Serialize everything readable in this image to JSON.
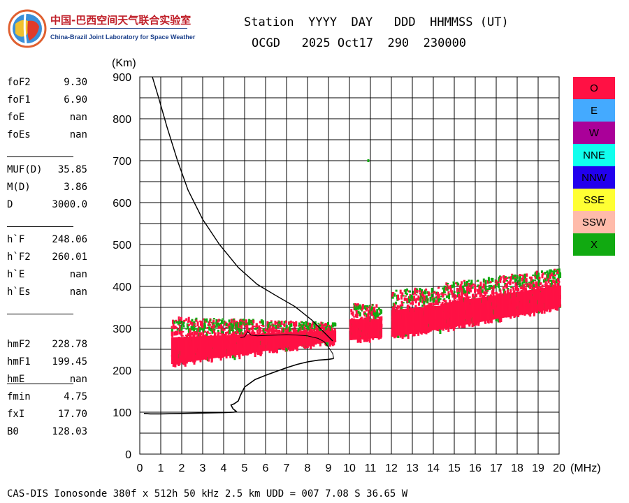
{
  "logo": {
    "name_cn": "中国-巴西空间天气联合实验室",
    "name_en": "China-Brazil Joint Laboratory for Space Weather"
  },
  "header": {
    "line1": "Station  YYYY  DAY   DDD  HHMMSS (UT)",
    "line2": "OCGD   2025 Oct17  290  230000"
  },
  "parameters": [
    [
      {
        "label": "foF2",
        "value": "9.30"
      },
      {
        "label": "foF1",
        "value": "6.90"
      },
      {
        "label": "foE",
        "value": "nan"
      },
      {
        "label": "foEs",
        "value": "nan"
      }
    ],
    [
      {
        "label": "MUF(D)",
        "value": "35.85"
      },
      {
        "label": "M(D)",
        "value": "3.86"
      },
      {
        "label": "D",
        "value": "3000.0"
      }
    ],
    [
      {
        "label": "h`F",
        "value": "248.06"
      },
      {
        "label": "h`F2",
        "value": "260.01"
      },
      {
        "label": "h`E",
        "value": "nan"
      },
      {
        "label": "h`Es",
        "value": "nan"
      }
    ],
    [
      {
        "label": "hmF2",
        "value": "228.78"
      },
      {
        "label": "hmF1",
        "value": "199.45"
      },
      {
        "label": "hmE",
        "value": "nan"
      }
    ],
    [
      {
        "label": "fmin",
        "value": "4.75"
      },
      {
        "label": "fxI",
        "value": "17.70"
      },
      {
        "label": "B0",
        "value": "128.03"
      }
    ]
  ],
  "legend": [
    {
      "label": "O",
      "color": "#ff1144"
    },
    {
      "label": "E",
      "color": "#44aaff"
    },
    {
      "label": "W",
      "color": "#aa0099"
    },
    {
      "label": "NNE",
      "color": "#11ffee"
    },
    {
      "label": "NNW",
      "color": "#2200ee"
    },
    {
      "label": "SSE",
      "color": "#ffff33"
    },
    {
      "label": "SSW",
      "color": "#ffbbaa"
    },
    {
      "label": "X",
      "color": "#11aa11"
    }
  ],
  "footer": "CAS-DIS Ionosonde 380f x 512h 50 kHz 2.5 km UDD = 007 7.08 S 36.65 W",
  "chart_data": {
    "type": "scatter",
    "xlabel": "(MHz)",
    "ylabel": "(Km)",
    "xlim": [
      0,
      20
    ],
    "ylim": [
      0,
      900
    ],
    "xticks": [
      0,
      1,
      2,
      3,
      4,
      5,
      6,
      7,
      8,
      9,
      10,
      11,
      12,
      13,
      14,
      15,
      16,
      17,
      18,
      19,
      20
    ],
    "yticks": [
      0,
      100,
      200,
      300,
      400,
      500,
      600,
      700,
      800,
      900
    ],
    "grid": true,
    "legend_position": "right",
    "echo_bands": [
      {
        "x0": 1.5,
        "x1": 9.3,
        "base0": 215,
        "base1": 270,
        "thick0": 115,
        "thick1": 45
      },
      {
        "x0": 10.0,
        "x1": 11.5,
        "base0": 272,
        "base1": 278,
        "thick0": 90,
        "thick1": 80
      },
      {
        "x0": 12.0,
        "x1": 14.5,
        "base0": 280,
        "base1": 300,
        "thick0": 115,
        "thick1": 100
      },
      {
        "x0": 14.5,
        "x1": 20.0,
        "base0": 300,
        "base1": 350,
        "thick0": 110,
        "thick1": 95
      }
    ],
    "profile_curve": [
      [
        0.2,
        97
      ],
      [
        0.5,
        96
      ],
      [
        1.0,
        96
      ],
      [
        2.0,
        97
      ],
      [
        3.0,
        98
      ],
      [
        4.0,
        99
      ],
      [
        4.5,
        100
      ],
      [
        4.6,
        102
      ],
      [
        4.45,
        108
      ],
      [
        4.35,
        117
      ],
      [
        4.5,
        120
      ],
      [
        4.7,
        127
      ],
      [
        4.8,
        140
      ],
      [
        5.0,
        160
      ],
      [
        5.5,
        178
      ],
      [
        6.0,
        188
      ],
      [
        6.5,
        197
      ],
      [
        7.0,
        206
      ],
      [
        7.5,
        214
      ],
      [
        8.0,
        220
      ],
      [
        8.5,
        224
      ],
      [
        9.0,
        226
      ],
      [
        9.25,
        228
      ]
    ],
    "virtual_height_trace": [
      [
        9.25,
        228
      ],
      [
        9.2,
        240
      ],
      [
        9.0,
        255
      ],
      [
        8.8,
        268
      ],
      [
        8.5,
        276
      ],
      [
        8.0,
        282
      ],
      [
        7.5,
        284
      ],
      [
        7.0,
        285
      ],
      [
        6.5,
        284
      ],
      [
        6.0,
        283
      ],
      [
        5.6,
        282
      ],
      [
        5.3,
        284
      ],
      [
        5.15,
        292
      ],
      [
        5.0,
        280
      ],
      [
        4.8,
        278
      ]
    ],
    "upper_curve": [
      [
        0.6,
        900
      ],
      [
        0.9,
        850
      ],
      [
        1.3,
        780
      ],
      [
        1.8,
        700
      ],
      [
        2.3,
        630
      ],
      [
        3.0,
        560
      ],
      [
        3.8,
        500
      ],
      [
        4.7,
        445
      ],
      [
        5.6,
        405
      ],
      [
        6.5,
        378
      ],
      [
        7.4,
        352
      ],
      [
        8.2,
        320
      ],
      [
        8.8,
        290
      ],
      [
        9.2,
        270
      ]
    ],
    "isolated_points": [
      {
        "x": 10.85,
        "y": 700,
        "color": "#11aa11"
      }
    ]
  }
}
